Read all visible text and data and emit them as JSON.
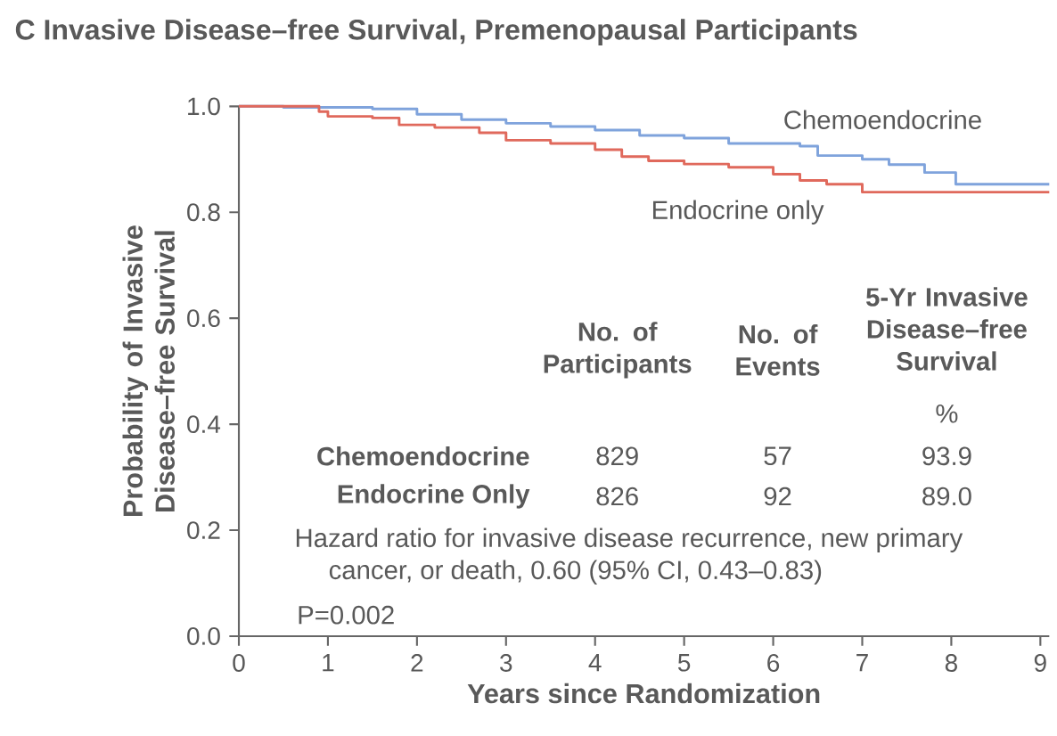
{
  "chart_data": {
    "type": "step",
    "title": "C  Invasive Disease–free Survival, Premenopausal Participants",
    "xlabel": "Years since Randomization",
    "ylabel": "Probability of Invasive Disease–free Survival",
    "xlim": [
      0,
      9.1
    ],
    "ylim": [
      0,
      1
    ],
    "xticks": [
      0,
      1,
      2,
      3,
      4,
      5,
      6,
      7,
      8,
      9
    ],
    "yticks": [
      {
        "value": 0,
        "label": "0.0"
      },
      {
        "value": 0.2,
        "label": "0.2"
      },
      {
        "value": 0.4,
        "label": "0.4"
      },
      {
        "value": 0.6,
        "label": "0.6"
      },
      {
        "value": 0.8,
        "label": "0.8"
      },
      {
        "value": 1,
        "label": "1.0"
      }
    ],
    "grid": false,
    "series": [
      {
        "name": "Chemoendocrine",
        "color": "#7fa3dc",
        "x": [
          0,
          0.5,
          1.5,
          2,
          2.5,
          3,
          3.5,
          4,
          4.5,
          5,
          5.5,
          6.3,
          6.5,
          7,
          7.3,
          7.7,
          8.05,
          9.1
        ],
        "values": [
          1,
          0.998,
          0.995,
          0.985,
          0.975,
          0.968,
          0.962,
          0.955,
          0.945,
          0.94,
          0.93,
          0.925,
          0.907,
          0.9,
          0.89,
          0.875,
          0.853,
          0.853
        ]
      },
      {
        "name": "Endocrine only",
        "color": "#e0695c",
        "x": [
          0,
          0.9,
          1.0,
          1.5,
          1.8,
          2.2,
          2.7,
          3,
          3.5,
          4,
          4.3,
          4.6,
          5,
          5.5,
          6,
          6.3,
          6.6,
          7,
          9.1
        ],
        "values": [
          1,
          0.99,
          0.981,
          0.978,
          0.965,
          0.96,
          0.95,
          0.936,
          0.93,
          0.918,
          0.905,
          0.897,
          0.891,
          0.885,
          0.872,
          0.86,
          0.853,
          0.838,
          0.838
        ]
      }
    ],
    "annotations": [
      "No. of Participants",
      "No. of Events",
      "5-Yr Invasive Disease–free Survival",
      "%",
      "Chemoendocrine",
      "829",
      "57",
      "93.9",
      "Endocrine Only",
      "826",
      "92",
      "89.0",
      "Hazard ratio for invasive disease recurrence, new primary cancer, or death, 0.60 (95% CI, 0.43–0.83)",
      "P=0.002"
    ]
  }
}
